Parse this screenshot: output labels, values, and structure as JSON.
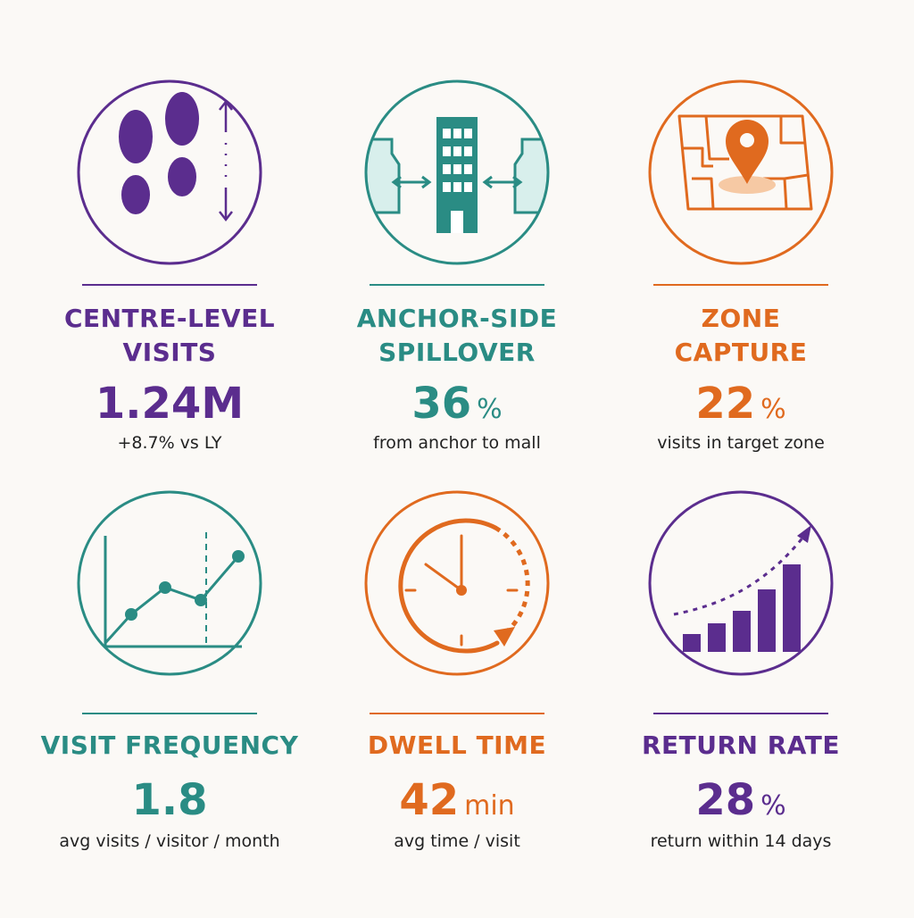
{
  "colors": {
    "purple": "#5b2d8e",
    "teal": "#2a8c84",
    "orange": "#e06a1f",
    "background": "#fbf9f6"
  },
  "cards": [
    {
      "title_line1": "CENTRE-LEVEL",
      "title_line2": "VISITS",
      "value": "1.24M",
      "unit": "",
      "caption": "+8.7% vs LY",
      "icon": "footsteps-icon",
      "color": "#5b2d8e"
    },
    {
      "title_line1": "ANCHOR-SIDE",
      "title_line2": "SPILLOVER",
      "value": "36",
      "unit": "%",
      "caption": "from anchor to mall",
      "icon": "building-icon",
      "color": "#2a8c84"
    },
    {
      "title_line1": "ZONE",
      "title_line2": "CAPTURE",
      "value": "22",
      "unit": "%",
      "caption": "visits in target zone",
      "icon": "map-pin-icon",
      "color": "#e06a1f"
    },
    {
      "title_line1": "VISIT FREQUENCY",
      "title_line2": "",
      "value": "1.8",
      "unit": "",
      "caption": "avg visits / visitor / month",
      "icon": "line-chart-icon",
      "color": "#2a8c84"
    },
    {
      "title_line1": "DWELL TIME",
      "title_line2": "",
      "value": "42",
      "unit": "min",
      "caption": "avg time / visit",
      "icon": "clock-icon",
      "color": "#e06a1f"
    },
    {
      "title_line1": "RETURN RATE",
      "title_line2": "",
      "value": "28",
      "unit": "%",
      "caption": "return within 14 days",
      "icon": "bar-chart-icon",
      "color": "#5b2d8e"
    }
  ]
}
